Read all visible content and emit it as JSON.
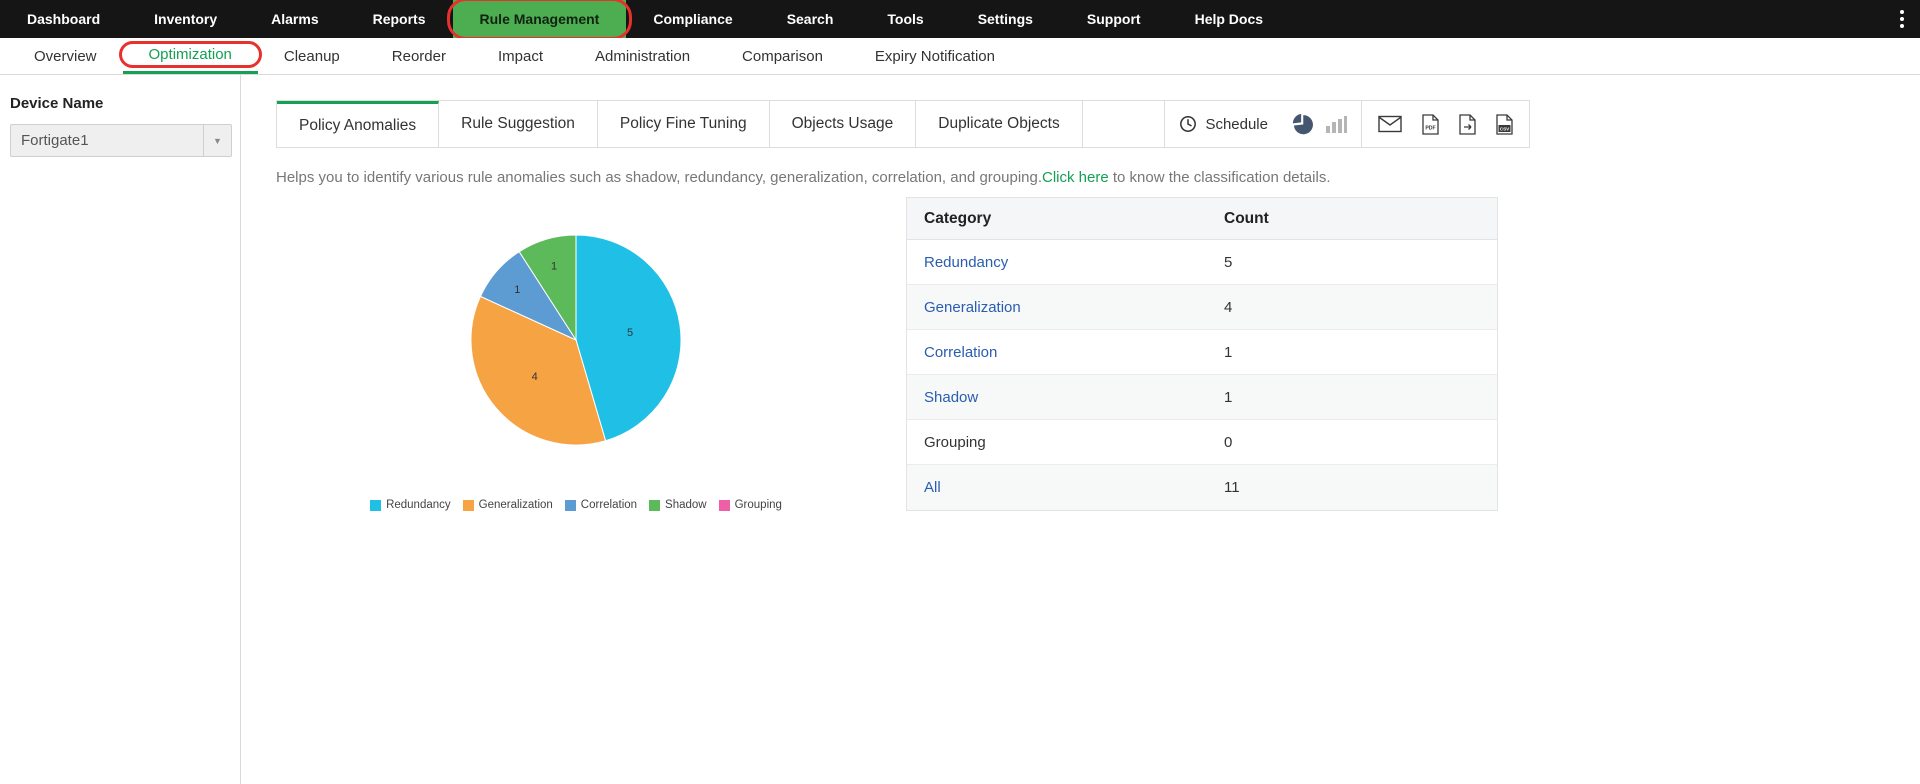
{
  "topnav": {
    "items": [
      "Dashboard",
      "Inventory",
      "Alarms",
      "Reports",
      "Rule Management",
      "Compliance",
      "Search",
      "Tools",
      "Settings",
      "Support",
      "Help Docs"
    ],
    "active_item": "Rule Management"
  },
  "subnav": {
    "items": [
      "Overview",
      "Optimization",
      "Cleanup",
      "Reorder",
      "Impact",
      "Administration",
      "Comparison",
      "Expiry Notification"
    ],
    "active_item": "Optimization"
  },
  "sidebar": {
    "device_label": "Device Name",
    "device_value": "Fortigate1"
  },
  "tabs": {
    "items": [
      "Policy Anomalies",
      "Rule Suggestion",
      "Policy Fine Tuning",
      "Objects Usage",
      "Duplicate Objects"
    ],
    "active_item": "Policy Anomalies"
  },
  "toolbar": {
    "schedule_label": "Schedule",
    "icons": [
      "clock-icon",
      "pie-chart-icon",
      "bar-chart-icon",
      "email-icon",
      "pdf-export-icon",
      "file-export-icon",
      "csv-export-icon"
    ]
  },
  "description": {
    "text": "Helps you to identify various rule anomalies such as shadow, redundancy, generalization, correlation, and grouping.",
    "link_text": "Click here",
    "suffix": " to know the classification details."
  },
  "chart_data": {
    "type": "pie",
    "categories": [
      "Redundancy",
      "Generalization",
      "Correlation",
      "Shadow",
      "Grouping"
    ],
    "values": [
      5,
      4,
      1,
      1,
      0
    ],
    "colors": [
      "#20c0e6",
      "#f6a344",
      "#5d9cd3",
      "#5dba5a",
      "#ef5fa7"
    ],
    "total": 11,
    "legend_position": "bottom",
    "slice_labels": [
      "5",
      "4",
      "1",
      "1"
    ]
  },
  "table": {
    "headers": [
      "Category",
      "Count"
    ],
    "rows": [
      {
        "category": "Redundancy",
        "count": "5",
        "link": true
      },
      {
        "category": "Generalization",
        "count": "4",
        "link": true
      },
      {
        "category": "Correlation",
        "count": "1",
        "link": true
      },
      {
        "category": "Shadow",
        "count": "1",
        "link": true
      },
      {
        "category": "Grouping",
        "count": "0",
        "link": false
      },
      {
        "category": "All",
        "count": "11",
        "link": true
      }
    ]
  },
  "annotations": {
    "highlight_color": "#e8302c",
    "highlighted": [
      "Rule Management",
      "Optimization"
    ]
  }
}
